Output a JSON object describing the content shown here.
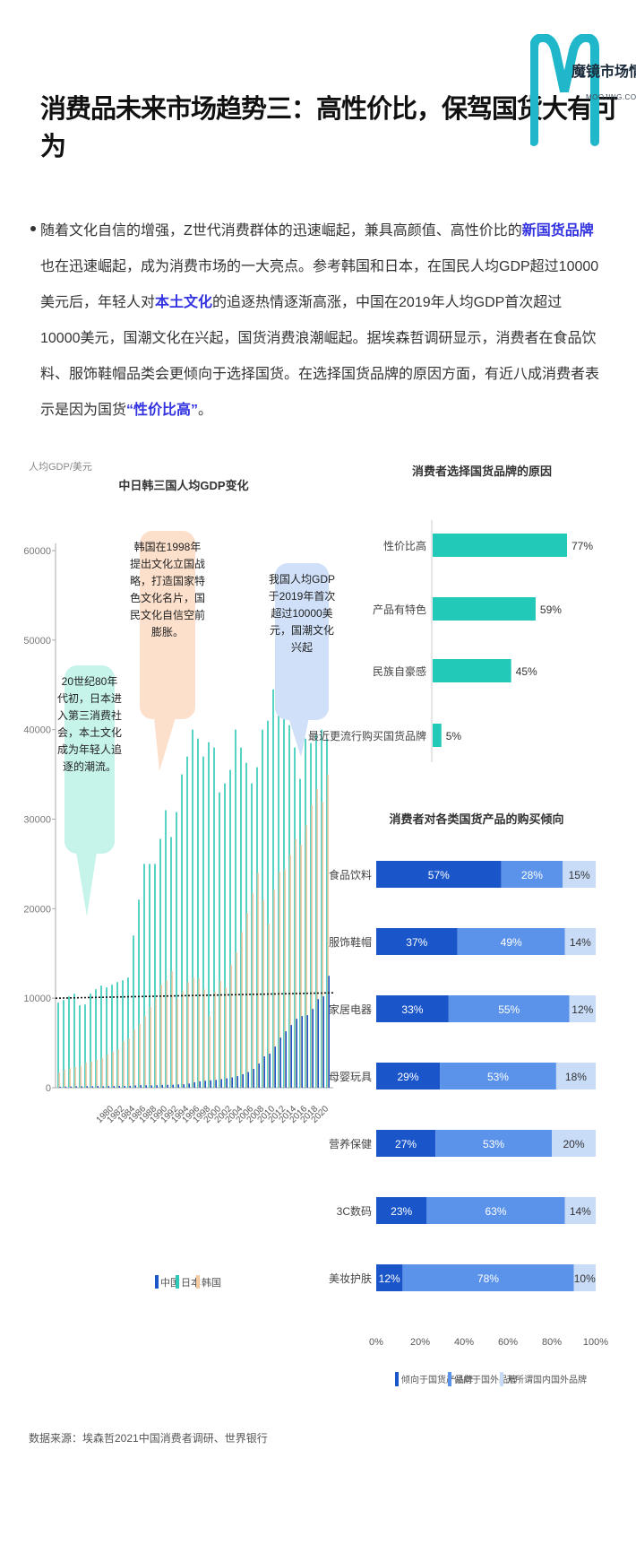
{
  "page": {
    "title": "消费品未来市场趋势三：高性价比，保驾国货大有可为",
    "logo": {
      "cn": "魔镜市场情报",
      "en": "MOOJING.COM"
    },
    "paragraph": {
      "p1": "随着文化自信的增强，Z世代消费群体的迅速崛起，兼具高颜值、高性价比的",
      "h1": "新国货品牌",
      "p2": "也在迅速崛起，成为消费市场的一大亮点。参考韩国和日本，在国民人均GDP超过10000美元后，年轻人对",
      "h2": "本土文化",
      "p3": "的追逐热情逐渐高涨，中国在2019年人均GDP首次超过10000美元，国潮文化在兴起，国货消费浪潮崛起。据埃森哲调研显示，消费者在食品饮料、服饰鞋帽品类会更倾向于选择国货。在选择国货品牌的原因方面，有近八成消费者表示是因为国货",
      "h3": "“性价比高”",
      "p4": "。"
    },
    "source": "数据来源：埃森哲2021中国消费者调研、世界银行"
  },
  "colors": {
    "china": "#1a56c9",
    "japan": "#2ec8b8",
    "korea": "#f3c9a2",
    "hbar": "#22c9b8",
    "domestic": "#1a56c9",
    "foreign": "#5b93ea",
    "nopref": "#c8dcf8"
  },
  "chart_data": [
    {
      "type": "bar",
      "title": "中日韩三国人均GDP变化",
      "ylabel": "人均GDP/美元",
      "ylim": [
        0,
        60000
      ],
      "yticks": [
        0,
        10000,
        20000,
        30000,
        40000,
        50000,
        60000
      ],
      "xticklabels": [
        "1980",
        "1982",
        "1984",
        "1986",
        "1988",
        "1990",
        "1992",
        "1994",
        "1996",
        "1998",
        "2000",
        "2002",
        "2004",
        "2006",
        "2008",
        "2010",
        "2012",
        "2014",
        "2016",
        "2018",
        "2020"
      ],
      "categories": [
        "1970",
        "1971",
        "1972",
        "1973",
        "1974",
        "1975",
        "1976",
        "1977",
        "1978",
        "1979",
        "1980",
        "1981",
        "1982",
        "1983",
        "1984",
        "1985",
        "1986",
        "1987",
        "1988",
        "1989",
        "1990",
        "1991",
        "1992",
        "1993",
        "1994",
        "1995",
        "1996",
        "1997",
        "1998",
        "1999",
        "2000",
        "2001",
        "2002",
        "2003",
        "2004",
        "2005",
        "2006",
        "2007",
        "2008",
        "2009",
        "2010",
        "2011",
        "2012",
        "2013",
        "2014",
        "2015",
        "2016",
        "2017",
        "2018",
        "2019",
        "2020"
      ],
      "series": [
        {
          "name": "中国",
          "values": [
            110,
            120,
            130,
            160,
            160,
            180,
            160,
            190,
            160,
            180,
            190,
            200,
            200,
            210,
            250,
            290,
            280,
            250,
            280,
            310,
            320,
            330,
            370,
            380,
            470,
            610,
            710,
            780,
            830,
            870,
            960,
            1050,
            1150,
            1290,
            1510,
            1750,
            2100,
            2700,
            3500,
            3800,
            4600,
            5600,
            6300,
            7000,
            7700,
            8000,
            8100,
            8800,
            9900,
            10200,
            12500
          ]
        },
        {
          "name": "日本",
          "values": [
            9500,
            9800,
            10200,
            10500,
            9200,
            9300,
            10500,
            11000,
            11400,
            11200,
            11500,
            11800,
            12000,
            12300,
            17000,
            21000,
            25000,
            25000,
            25000,
            27800,
            31000,
            28000,
            30800,
            35000,
            37000,
            40000,
            39000,
            37000,
            38600,
            38000,
            33000,
            34000,
            35500,
            40000,
            38000,
            36300,
            34000,
            35800,
            40000,
            41000,
            44500,
            48000,
            49000,
            40500,
            38000,
            34500,
            39000,
            38500,
            39500,
            40000,
            39000
          ]
        },
        {
          "name": "韩国",
          "values": [
            1700,
            2000,
            2200,
            2300,
            2400,
            2800,
            2900,
            3100,
            3300,
            3700,
            4000,
            4300,
            5200,
            5500,
            6500,
            7100,
            8000,
            9000,
            10000,
            11500,
            12000,
            13000,
            10000,
            10800,
            11800,
            12300,
            12200,
            11000,
            8000,
            10700,
            11900,
            11200,
            13700,
            15100,
            17400,
            19500,
            21700,
            24000,
            21000,
            18300,
            22100,
            24100,
            24400,
            26000,
            27800,
            27100,
            29300,
            31600,
            33400,
            31900,
            35000
          ]
        }
      ],
      "annotations": [
        "20世纪80年代初，日本进入第三消费社会，本土文化成为年轻人追逐的潮流。",
        "韩国在1998年提出文化立国战略，打造国家特色文化名片，国民文化自信空前膨胀。",
        "我国人均GDP于2019年首次超过10000美元，国潮文化兴起"
      ],
      "reference_line": 10000,
      "legend": "bottom"
    },
    {
      "type": "bar",
      "orientation": "horizontal",
      "title": "消费者选择国货品牌的原因",
      "categories": [
        "性价比高",
        "产品有特色",
        "民族自豪感",
        "最近更流行购买国货品牌"
      ],
      "values": [
        77,
        59,
        45,
        5
      ],
      "value_labels": [
        "77%",
        "59%",
        "45%",
        "5%"
      ]
    },
    {
      "type": "bar",
      "orientation": "horizontal",
      "stacked": true,
      "title": "消费者对各类国货产品的购买倾向",
      "categories": [
        "食品饮料",
        "服饰鞋帽",
        "家居电器",
        "母婴玩具",
        "营养保健",
        "3C数码",
        "美妆护肤"
      ],
      "series": [
        {
          "name": "倾向于国货产品牌",
          "values": [
            57,
            37,
            33,
            29,
            27,
            23,
            12
          ]
        },
        {
          "name": "倾向于国外品牌",
          "values": [
            28,
            49,
            55,
            53,
            53,
            63,
            78
          ]
        },
        {
          "name": "无所谓国内国外品牌",
          "values": [
            15,
            14,
            12,
            18,
            20,
            14,
            10
          ]
        }
      ],
      "xticklabels": [
        "0%",
        "20%",
        "40%",
        "60%",
        "80%",
        "100%"
      ],
      "xlim": [
        0,
        100
      ],
      "legend": "bottom"
    }
  ]
}
